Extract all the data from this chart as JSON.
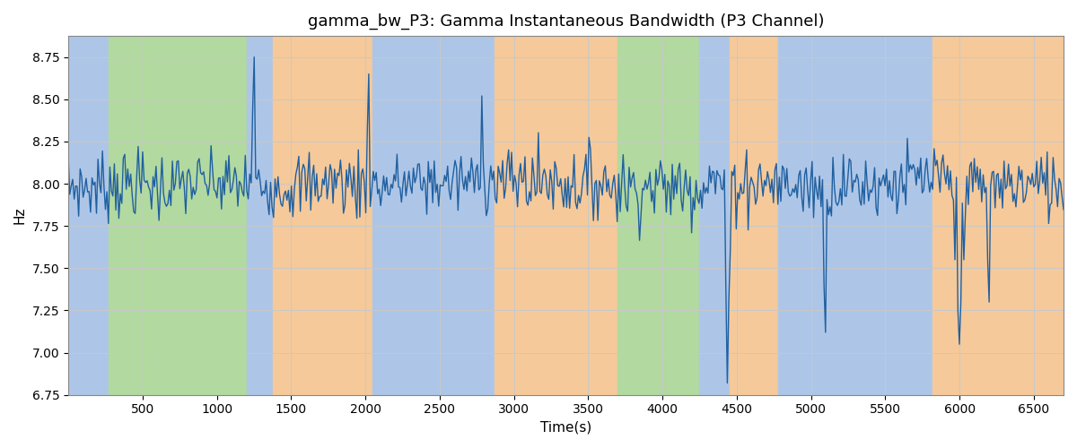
{
  "title": "gamma_bw_P3: Gamma Instantaneous Bandwidth (P3 Channel)",
  "xlabel": "Time(s)",
  "ylabel": "Hz",
  "ylim": [
    6.75,
    8.875
  ],
  "xlim": [
    0,
    6700
  ],
  "line_color": "#2060a0",
  "line_width": 1.0,
  "bg_regions": [
    {
      "xmin": 0,
      "xmax": 270,
      "color": "#adc6e8"
    },
    {
      "xmin": 270,
      "xmax": 1200,
      "color": "#b2d9a0"
    },
    {
      "xmin": 1200,
      "xmax": 1380,
      "color": "#adc6e8"
    },
    {
      "xmin": 1380,
      "xmax": 2050,
      "color": "#f5c99a"
    },
    {
      "xmin": 2050,
      "xmax": 2750,
      "color": "#adc6e8"
    },
    {
      "xmin": 2750,
      "xmax": 2870,
      "color": "#adc6e8"
    },
    {
      "xmin": 2870,
      "xmax": 3700,
      "color": "#f5c99a"
    },
    {
      "xmin": 3700,
      "xmax": 4250,
      "color": "#b2d9a0"
    },
    {
      "xmin": 4250,
      "xmax": 4450,
      "color": "#adc6e8"
    },
    {
      "xmin": 4450,
      "xmax": 4780,
      "color": "#f5c99a"
    },
    {
      "xmin": 4780,
      "xmax": 5820,
      "color": "#adc6e8"
    },
    {
      "xmin": 5820,
      "xmax": 6070,
      "color": "#f5c99a"
    },
    {
      "xmin": 6070,
      "xmax": 6700,
      "color": "#f5c99a"
    }
  ],
  "grid_color": "#c8c8c8",
  "yticks": [
    6.75,
    7.0,
    7.25,
    7.5,
    7.75,
    8.0,
    8.25,
    8.5,
    8.75
  ],
  "xticks": [
    500,
    1000,
    1500,
    2000,
    2500,
    3000,
    3500,
    4000,
    4500,
    5000,
    5500,
    6000,
    6500
  ],
  "seed": 7,
  "n_points": 670,
  "base_freq": 8.0,
  "noise_std": 0.1,
  "slow_std": 0.07,
  "slow_smooth": 30
}
